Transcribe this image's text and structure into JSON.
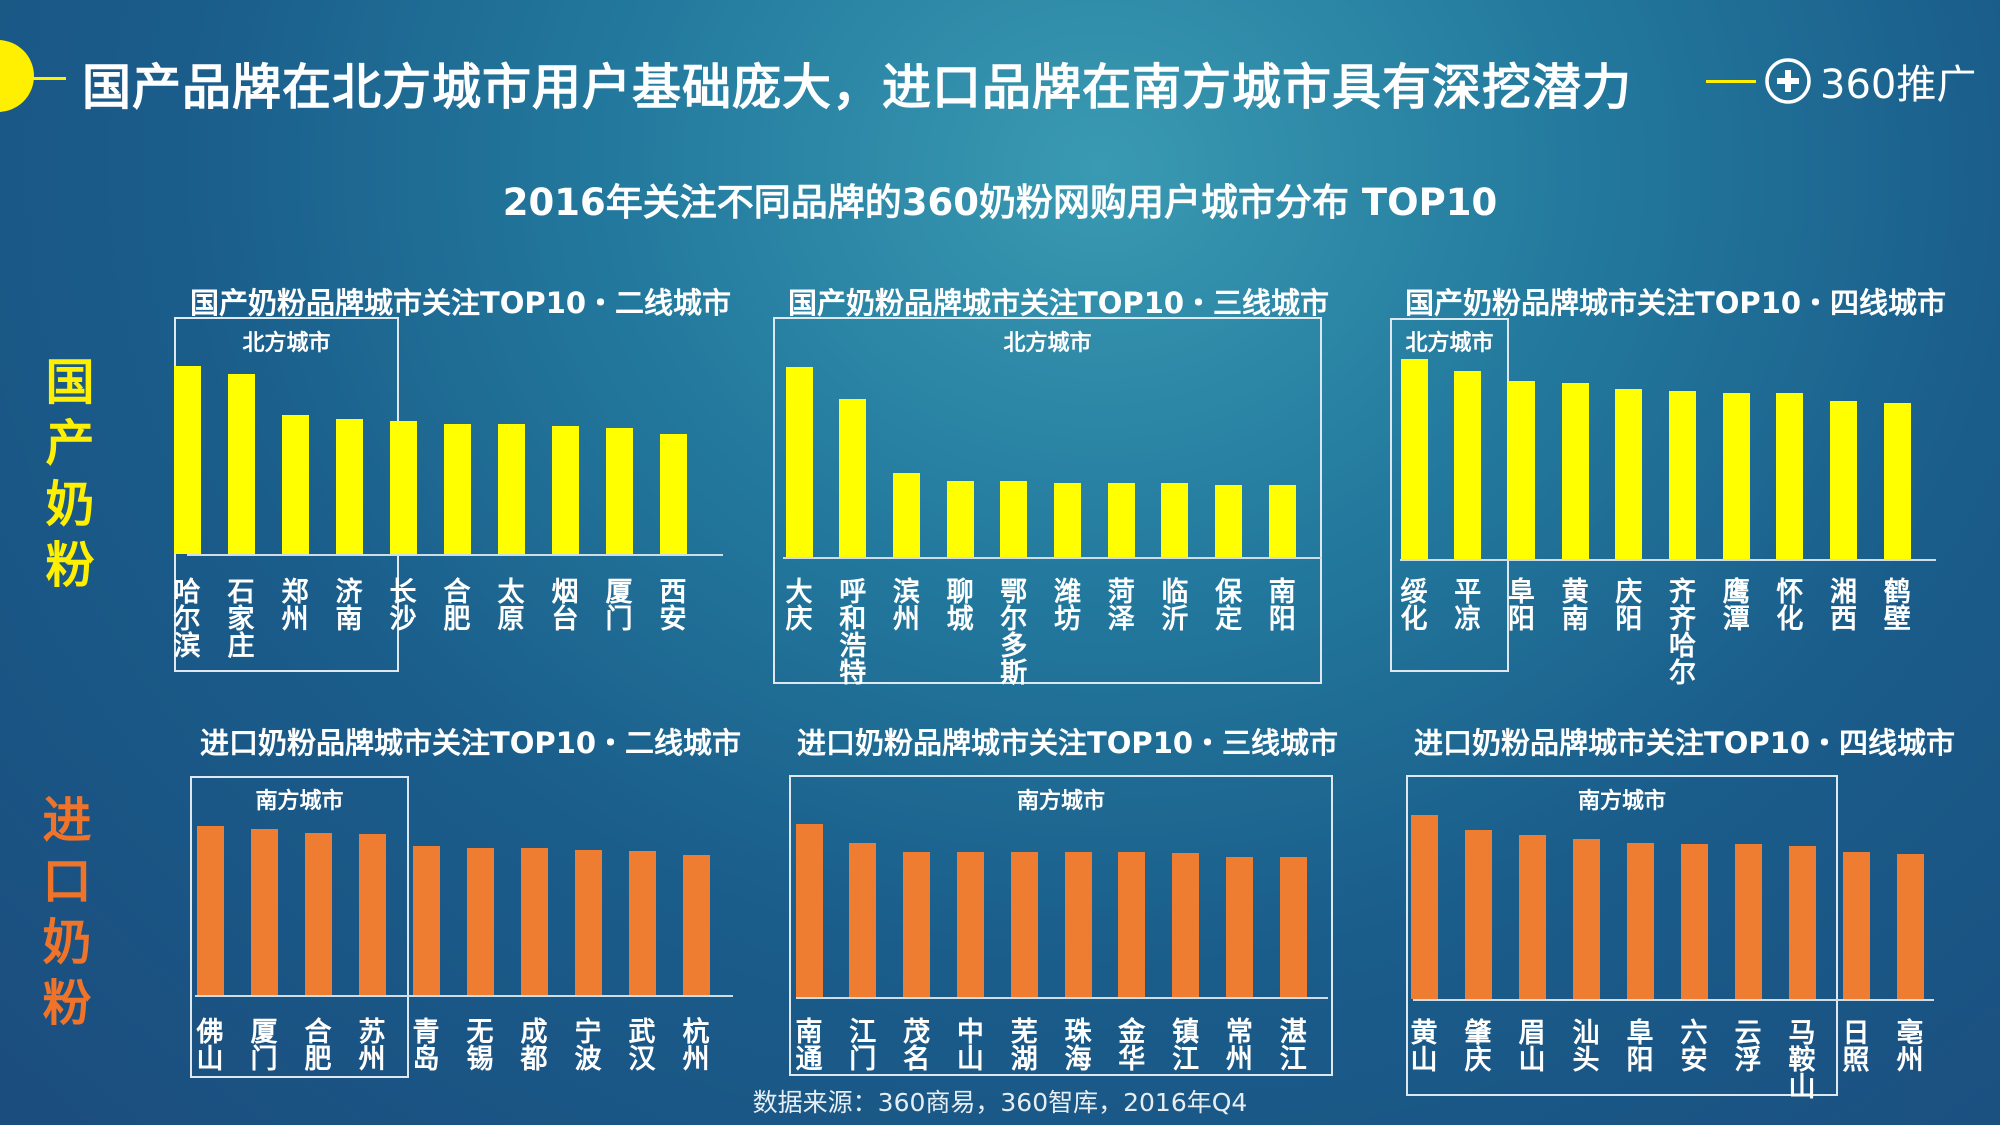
{
  "header": {
    "title": "国产品牌在北方城市用户基础庞大，进口品牌在南方城市具有深挖潜力",
    "brand": "360推广",
    "brand_icon": "plus-circle-icon",
    "accent": "#ffef00"
  },
  "subtitle": "2016年关注不同品牌的360奶粉网购用户城市分布 TOP10",
  "side_labels": {
    "domestic": "国产奶粉",
    "imported": "进口奶粉"
  },
  "colors": {
    "domestic": "#ffff00",
    "imported": "#ef7d31",
    "domestic_label": "#ffef00",
    "imported_label": "#f0732a"
  },
  "source": "数据来源：360商易，360智库，2016年Q4",
  "chart_data": [
    {
      "type": "bar",
      "title": "国产奶粉品牌城市关注TOP10・二线城市",
      "series": "domestic",
      "group_label": "北方城市",
      "group_count": 4,
      "categories": [
        "哈尔滨",
        "石家庄",
        "郑州",
        "济南",
        "长沙",
        "合肥",
        "太原",
        "烟台",
        "厦门",
        "西安"
      ],
      "values": [
        100,
        96,
        74,
        72,
        71,
        69,
        69,
        68,
        67,
        64
      ],
      "ylim": [
        0,
        100
      ]
    },
    {
      "type": "bar",
      "title": "国产奶粉品牌城市关注TOP10・三线城市",
      "series": "domestic",
      "group_label": "北方城市",
      "group_count": 10,
      "categories": [
        "大庆",
        "呼和浩特",
        "滨州",
        "聊城",
        "鄂尔多斯",
        "潍坊",
        "菏泽",
        "临沂",
        "保定",
        "南阳"
      ],
      "values": [
        100,
        83,
        44,
        40,
        40,
        39,
        39,
        39,
        38,
        38
      ],
      "ylim": [
        0,
        100
      ]
    },
    {
      "type": "bar",
      "title": "国产奶粉品牌城市关注TOP10・四线城市",
      "series": "domestic",
      "group_label": "北方城市",
      "group_count": 2,
      "categories": [
        "绥化",
        "平凉",
        "阜阳",
        "黄南",
        "庆阳",
        "齐齐哈尔",
        "鹰潭",
        "怀化",
        "湘西",
        "鹤壁"
      ],
      "values": [
        100,
        94,
        89,
        88,
        85,
        84,
        83,
        83,
        79,
        78
      ],
      "ylim": [
        0,
        100
      ]
    },
    {
      "type": "bar",
      "title": "进口奶粉品牌城市关注TOP10・二线城市",
      "series": "imported",
      "group_label": "南方城市",
      "group_count": 4,
      "categories": [
        "佛山",
        "厦门",
        "合肥",
        "苏州",
        "青岛",
        "无锡",
        "成都",
        "宁波",
        "武汉",
        "杭州"
      ],
      "values": [
        100,
        98,
        96,
        95,
        88,
        87,
        87,
        86,
        85,
        83
      ],
      "ylim": [
        0,
        100
      ]
    },
    {
      "type": "bar",
      "title": "进口奶粉品牌城市关注TOP10・三线城市",
      "series": "imported",
      "group_label": "南方城市",
      "group_count": 10,
      "categories": [
        "南通",
        "江门",
        "茂名",
        "中山",
        "芜湖",
        "珠海",
        "金华",
        "镇江",
        "常州",
        "湛江"
      ],
      "values": [
        100,
        89,
        84,
        84,
        84,
        84,
        84,
        83,
        81,
        81
      ],
      "ylim": [
        0,
        100
      ]
    },
    {
      "type": "bar",
      "title": "进口奶粉品牌城市关注TOP10・四线城市",
      "series": "imported",
      "group_label": "南方城市",
      "group_count": 8,
      "categories": [
        "黄山",
        "肇庆",
        "眉山",
        "汕头",
        "阜阳",
        "六安",
        "云浮",
        "马鞍山",
        "日照",
        "亳州"
      ],
      "values": [
        100,
        92,
        89,
        87,
        85,
        84,
        84,
        83,
        80,
        79
      ],
      "ylim": [
        0,
        100
      ]
    }
  ]
}
